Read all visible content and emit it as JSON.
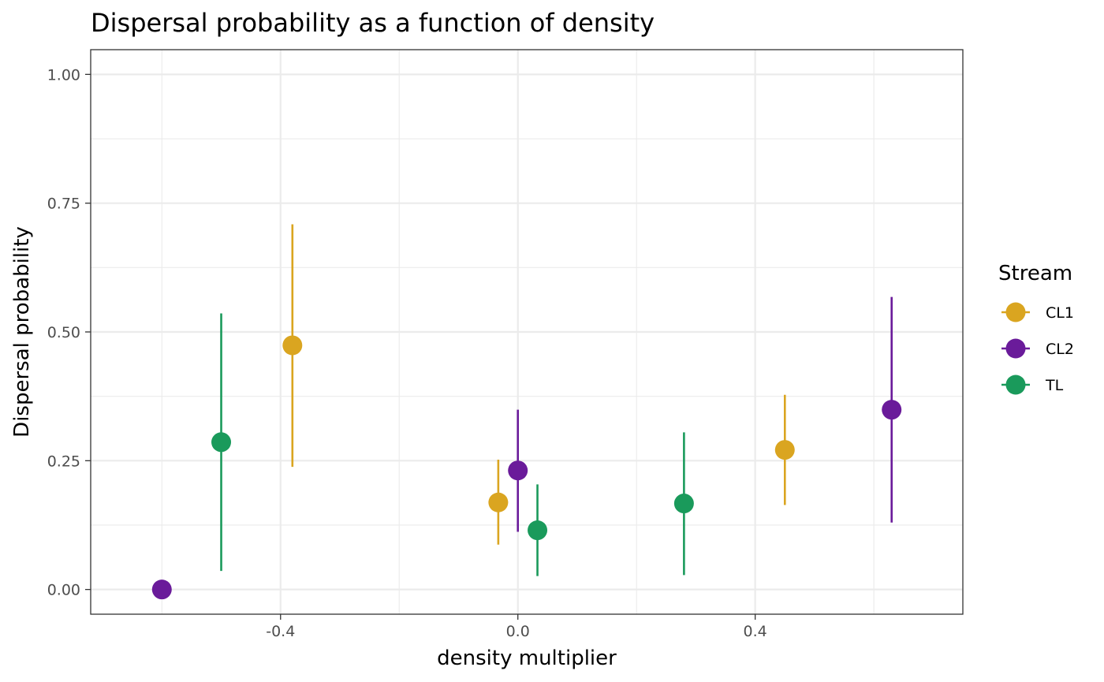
{
  "chart_data": {
    "type": "scatter",
    "title": "Dispersal probability as a function of density",
    "xlabel": "density multiplier",
    "ylabel": "Dispersal probability",
    "xlim": [
      -0.72,
      0.75
    ],
    "ylim": [
      -0.048,
      1.048
    ],
    "x_ticks": [
      -0.4,
      0.0,
      0.4
    ],
    "x_tick_labels": [
      "-0.4",
      "0.0",
      "0.4"
    ],
    "y_ticks": [
      0,
      0.25,
      0.5,
      0.75,
      1.0
    ],
    "y_tick_labels": [
      "0.00",
      "0.25",
      "0.50",
      "0.75",
      "1.00"
    ],
    "grid": true,
    "error_bars": true,
    "legend": {
      "title": "Stream",
      "position": "right"
    },
    "series": [
      {
        "name": "CL1",
        "color": "#DAA520",
        "points": [
          {
            "x": -0.38,
            "y": 0.474,
            "lo": 0.238,
            "hi": 0.709
          },
          {
            "x": -0.033,
            "y": 0.169,
            "lo": 0.087,
            "hi": 0.252
          },
          {
            "x": 0.45,
            "y": 0.271,
            "lo": 0.164,
            "hi": 0.378
          }
        ]
      },
      {
        "name": "CL2",
        "color": "#6A1B9A",
        "points": [
          {
            "x": -0.6,
            "y": 0.0,
            "lo": 0.0,
            "hi": 0.0
          },
          {
            "x": 0.0,
            "y": 0.231,
            "lo": 0.112,
            "hi": 0.349
          },
          {
            "x": 0.63,
            "y": 0.349,
            "lo": 0.13,
            "hi": 0.568
          }
        ]
      },
      {
        "name": "TL",
        "color": "#1A9A5B",
        "points": [
          {
            "x": -0.5,
            "y": 0.286,
            "lo": 0.036,
            "hi": 0.536
          },
          {
            "x": 0.033,
            "y": 0.115,
            "lo": 0.026,
            "hi": 0.204
          },
          {
            "x": 0.28,
            "y": 0.167,
            "lo": 0.028,
            "hi": 0.305
          }
        ]
      }
    ]
  }
}
